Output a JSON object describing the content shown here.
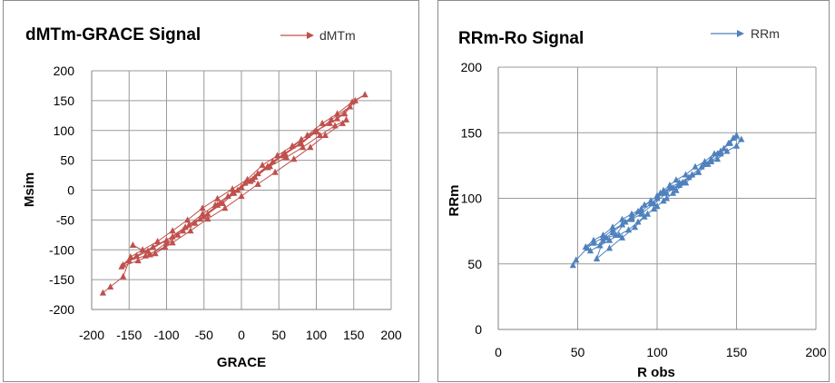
{
  "chart_data": [
    {
      "id": "left",
      "type": "line",
      "title": "dMTm-GRACE Signal",
      "xlabel": "GRACE",
      "ylabel": "Msim",
      "xlim": [
        -200,
        200
      ],
      "ylim": [
        -200,
        200
      ],
      "xticks": [
        -200,
        -150,
        -100,
        -50,
        0,
        50,
        100,
        150,
        200
      ],
      "yticks": [
        -200,
        -150,
        -100,
        -50,
        0,
        50,
        100,
        150,
        200
      ],
      "grid": true,
      "legend_position": "top-right",
      "color": "#c0504d",
      "marker": "triangle",
      "series": [
        {
          "name": "dMTm",
          "x": [
            -185,
            -175,
            -158,
            -150,
            -128,
            -102,
            -85,
            -62,
            -45,
            -28,
            -12,
            5,
            22,
            42,
            58,
            78,
            98,
            118,
            138,
            152,
            165,
            148,
            128,
            108,
            88,
            68,
            48,
            28,
            8,
            -12,
            -32,
            -52,
            -72,
            -92,
            -112,
            -132,
            -148,
            -158,
            -140,
            -118,
            -92,
            -70,
            -52,
            -35,
            -18,
            0,
            18,
            38,
            60,
            82,
            105,
            125,
            140,
            135,
            112,
            92,
            70,
            45,
            22,
            0,
            -22,
            -45,
            -68,
            -92,
            -115,
            -138,
            -160,
            -150,
            -125,
            -100,
            -75,
            -50,
            -25,
            -5,
            15,
            35,
            55,
            80,
            100,
            120,
            145,
            128,
            100,
            80,
            58,
            35,
            12,
            -10,
            -32,
            -55,
            -78,
            -100,
            -122,
            -145
          ],
          "y": [
            -172,
            -162,
            -145,
            -118,
            -110,
            -95,
            -75,
            -55,
            -40,
            -22,
            -5,
            12,
            28,
            48,
            62,
            78,
            98,
            112,
            128,
            150,
            160,
            148,
            128,
            112,
            92,
            74,
            58,
            42,
            18,
            2,
            -14,
            -30,
            -50,
            -68,
            -86,
            -100,
            -112,
            -125,
            -110,
            -95,
            -78,
            -58,
            -40,
            -25,
            -10,
            5,
            22,
            40,
            55,
            72,
            92,
            108,
            118,
            112,
            92,
            72,
            52,
            30,
            10,
            -10,
            -30,
            -48,
            -68,
            -88,
            -106,
            -118,
            -128,
            -118,
            -102,
            -84,
            -62,
            -44,
            -22,
            0,
            18,
            38,
            58,
            78,
            98,
            118,
            140,
            120,
            100,
            85,
            60,
            40,
            15,
            -5,
            -25,
            -48,
            -68,
            -88,
            -108,
            -92
          ]
        }
      ]
    },
    {
      "id": "right",
      "type": "line",
      "title": "RRm-Ro Signal",
      "xlabel": "R obs",
      "ylabel": "RRm",
      "xlim": [
        0,
        200
      ],
      "ylim": [
        0,
        200
      ],
      "xticks": [
        0,
        50,
        100,
        150,
        200
      ],
      "yticks": [
        0,
        50,
        100,
        150,
        200
      ],
      "grid": true,
      "legend_position": "top-right",
      "color": "#4f81bd",
      "marker": "triangle",
      "series": [
        {
          "name": "RRm",
          "x": [
            47,
            49,
            56,
            60,
            64,
            68,
            74,
            80,
            84,
            88,
            92,
            96,
            100,
            104,
            108,
            112,
            118,
            124,
            130,
            136,
            142,
            148,
            153,
            150,
            144,
            138,
            132,
            126,
            120,
            114,
            108,
            102,
            96,
            90,
            84,
            78,
            72,
            66,
            60,
            55,
            60,
            66,
            72,
            78,
            84,
            90,
            96,
            100,
            104,
            110,
            116,
            122,
            128,
            134,
            140,
            146,
            150,
            145,
            138,
            130,
            122,
            114,
            106,
            98,
            90,
            84,
            78,
            72,
            66,
            62,
            70,
            78,
            86,
            92,
            98,
            104,
            110,
            118,
            126,
            134,
            140,
            134,
            126,
            118,
            112,
            106,
            100,
            94,
            88,
            82,
            76,
            70,
            64,
            58
          ],
          "y": [
            49,
            53,
            62,
            66,
            64,
            70,
            72,
            82,
            86,
            90,
            95,
            98,
            102,
            106,
            110,
            114,
            118,
            124,
            128,
            134,
            138,
            146,
            145,
            140,
            136,
            130,
            126,
            120,
            116,
            112,
            108,
            104,
            98,
            92,
            88,
            84,
            78,
            72,
            68,
            63,
            66,
            70,
            76,
            80,
            85,
            90,
            96,
            100,
            104,
            108,
            112,
            118,
            124,
            130,
            136,
            142,
            148,
            142,
            134,
            126,
            118,
            110,
            104,
            96,
            88,
            84,
            80,
            74,
            68,
            54,
            62,
            70,
            78,
            86,
            92,
            98,
            104,
            112,
            120,
            128,
            134,
            128,
            120,
            112,
            106,
            100,
            94,
            88,
            82,
            76,
            72,
            68,
            64,
            60
          ]
        }
      ]
    }
  ]
}
